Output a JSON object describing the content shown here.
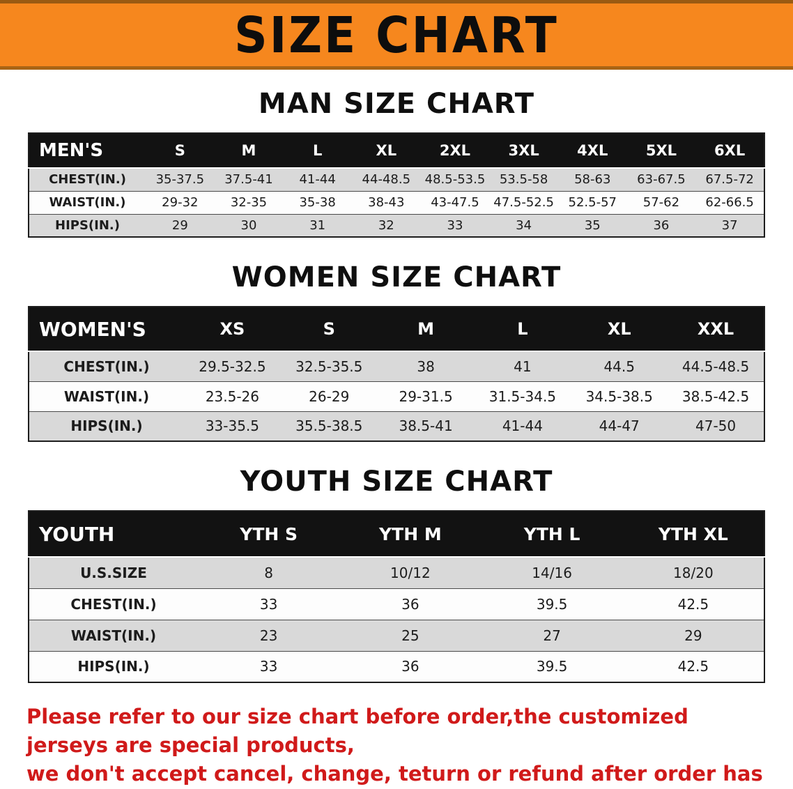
{
  "banner": {
    "title": "SIZE CHART",
    "background_color": "#f6871e",
    "text_color": "#0d0d0d"
  },
  "colors": {
    "table_header_bg": "#121212",
    "table_header_text": "#ffffff",
    "row_shaded": "#d9d9d9",
    "row_plain": "#fdfdfd",
    "disclaimer_text": "#d01a1a"
  },
  "men": {
    "heading": "MAN SIZE CHART",
    "table": {
      "header": [
        "MEN'S",
        "S",
        "M",
        "L",
        "XL",
        "2XL",
        "3XL",
        "4XL",
        "5XL",
        "6XL"
      ],
      "rows": [
        {
          "label": "CHEST(IN.)",
          "values": [
            "35-37.5",
            "37.5-41",
            "41-44",
            "44-48.5",
            "48.5-53.5",
            "53.5-58",
            "58-63",
            "63-67.5",
            "67.5-72"
          ]
        },
        {
          "label": "WAIST(IN.)",
          "values": [
            "29-32",
            "32-35",
            "35-38",
            "38-43",
            "43-47.5",
            "47.5-52.5",
            "52.5-57",
            "57-62",
            "62-66.5"
          ]
        },
        {
          "label": "HIPS(IN.)",
          "values": [
            "29",
            "30",
            "31",
            "32",
            "33",
            "34",
            "35",
            "36",
            "37"
          ]
        }
      ]
    }
  },
  "women": {
    "heading": "WOMEN SIZE CHART",
    "table": {
      "header": [
        "WOMEN'S",
        "XS",
        "S",
        "M",
        "L",
        "XL",
        "XXL"
      ],
      "rows": [
        {
          "label": "CHEST(IN.)",
          "values": [
            "29.5-32.5",
            "32.5-35.5",
            "38",
            "41",
            "44.5",
            "44.5-48.5"
          ]
        },
        {
          "label": "WAIST(IN.)",
          "values": [
            "23.5-26",
            "26-29",
            "29-31.5",
            "31.5-34.5",
            "34.5-38.5",
            "38.5-42.5"
          ]
        },
        {
          "label": "HIPS(IN.)",
          "values": [
            "33-35.5",
            "35.5-38.5",
            "38.5-41",
            "41-44",
            "44-47",
            "47-50"
          ]
        }
      ]
    }
  },
  "youth": {
    "heading": "YOUTH SIZE CHART",
    "table": {
      "header": [
        "YOUTH",
        "YTH S",
        "YTH M",
        "YTH L",
        "YTH XL"
      ],
      "rows": [
        {
          "label": "U.S.SIZE",
          "values": [
            "8",
            "10/12",
            "14/16",
            "18/20"
          ]
        },
        {
          "label": "CHEST(IN.)",
          "values": [
            "33",
            "36",
            "39.5",
            "42.5"
          ]
        },
        {
          "label": "WAIST(IN.)",
          "values": [
            "23",
            "25",
            "27",
            "29"
          ]
        },
        {
          "label": "HIPS(IN.)",
          "values": [
            "33",
            "36",
            "39.5",
            "42.5"
          ]
        }
      ]
    }
  },
  "disclaimer": {
    "line1": "Please refer to our size chart before order,the customized jerseys are special products,",
    "line2": "we don't accept cancel, change, teturn or refund after order has been placed!"
  }
}
